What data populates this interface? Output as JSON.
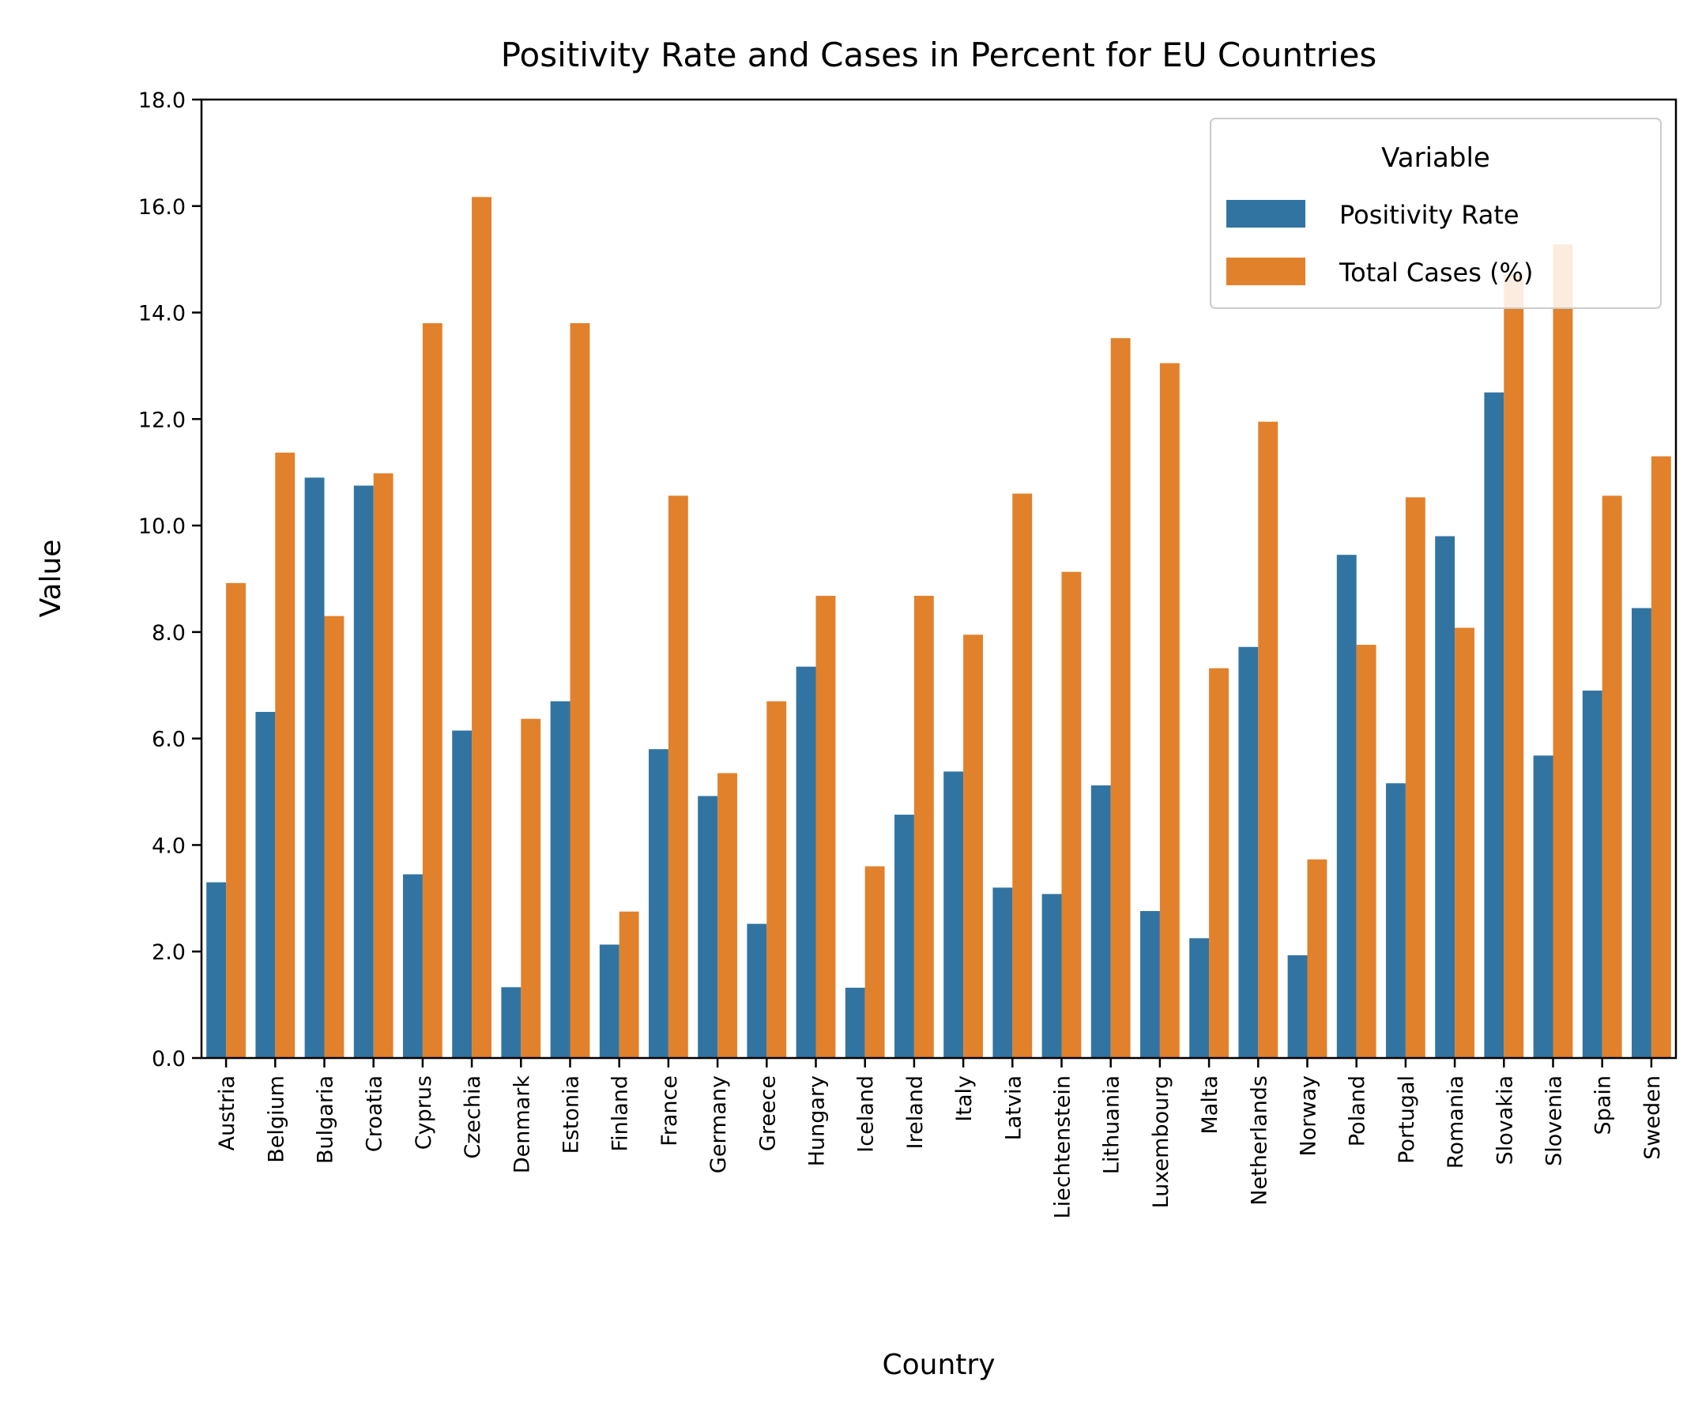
{
  "chart_data": {
    "type": "bar",
    "title": "Positivity Rate and Cases in Percent for EU Countries",
    "xlabel": "Country",
    "ylabel": "Value",
    "ylim": [
      0,
      18
    ],
    "yticks": [
      "0.0",
      "2.0",
      "4.0",
      "6.0",
      "8.0",
      "10.0",
      "12.0",
      "14.0",
      "16.0",
      "18.0"
    ],
    "grid": false,
    "legend": {
      "title": "Variable",
      "position": "top-right"
    },
    "categories": [
      "Austria",
      "Belgium",
      "Bulgaria",
      "Croatia",
      "Cyprus",
      "Czechia",
      "Denmark",
      "Estonia",
      "Finland",
      "France",
      "Germany",
      "Greece",
      "Hungary",
      "Iceland",
      "Ireland",
      "Italy",
      "Latvia",
      "Liechtenstein",
      "Lithuania",
      "Luxembourg",
      "Malta",
      "Netherlands",
      "Norway",
      "Poland",
      "Portugal",
      "Romania",
      "Slovakia",
      "Slovenia",
      "Spain",
      "Sweden"
    ],
    "series": [
      {
        "name": "Positivity Rate",
        "color": "#3274a1",
        "values": [
          3.3,
          6.5,
          10.9,
          10.75,
          3.45,
          6.15,
          1.33,
          6.7,
          2.13,
          5.8,
          4.92,
          2.52,
          7.35,
          1.32,
          4.57,
          5.38,
          3.2,
          3.08,
          5.12,
          2.76,
          2.25,
          7.72,
          1.93,
          9.45,
          5.16,
          9.8,
          12.5,
          5.68,
          6.9,
          8.45
        ]
      },
      {
        "name": "Total Cases (%)",
        "color": "#e1812c",
        "values": [
          8.92,
          11.37,
          8.3,
          10.98,
          13.8,
          16.17,
          6.37,
          13.8,
          2.75,
          10.56,
          5.35,
          6.7,
          8.68,
          3.6,
          8.68,
          7.95,
          10.6,
          9.13,
          13.52,
          13.05,
          7.32,
          11.95,
          3.73,
          7.76,
          10.53,
          8.08,
          14.72,
          15.28,
          10.56,
          11.3
        ]
      }
    ]
  }
}
